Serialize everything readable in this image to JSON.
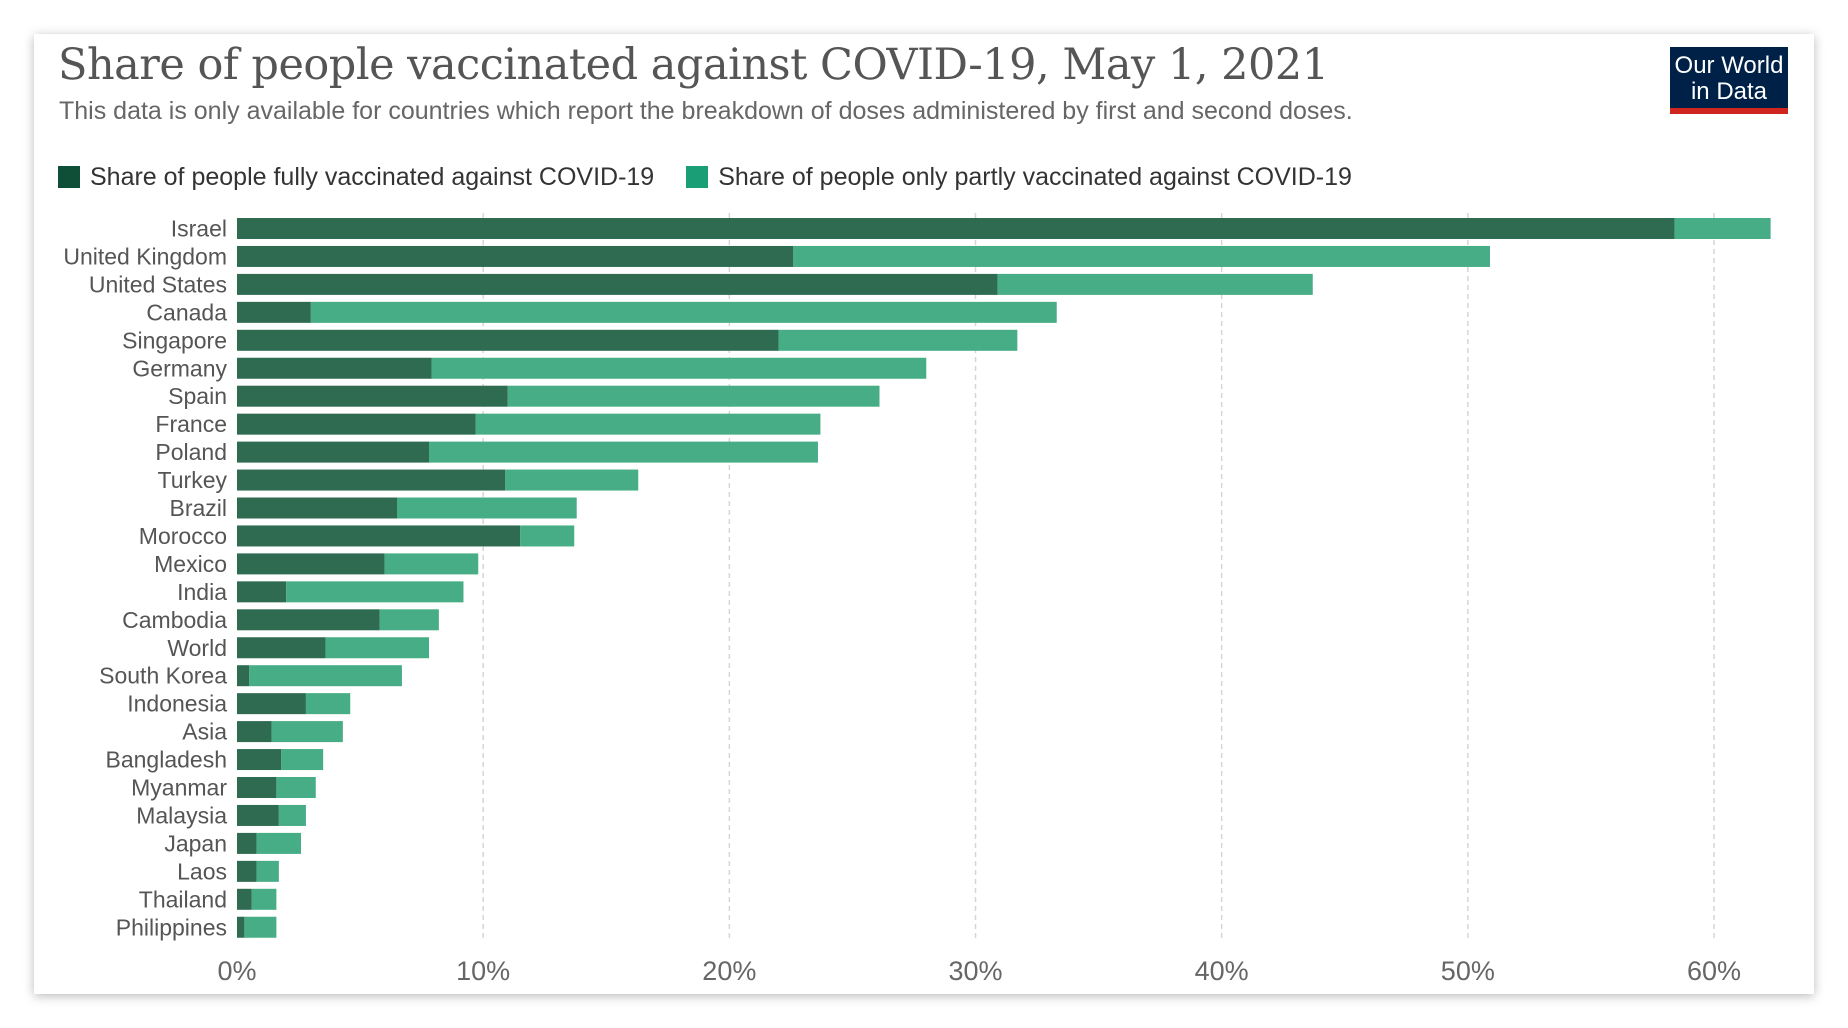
{
  "header": {
    "title": "Share of people vaccinated against COVID-19, May 1, 2021",
    "subtitle": "This data is only available for countries which report the breakdown of doses administered by first and second doses.",
    "logo_line1": "Our World",
    "logo_line2": "in Data"
  },
  "colors": {
    "fully": "#2e6b50",
    "partly": "#46ad86",
    "legend_fully": "#0f4f38",
    "legend_partly": "#1a9e75",
    "grid": "#d6d6d6",
    "logo_bg": "#002147",
    "logo_accent": "#ce261e"
  },
  "chart_data": {
    "type": "bar",
    "orientation": "horizontal",
    "stacked": true,
    "title": "Share of people vaccinated against COVID-19, May 1, 2021",
    "subtitle": "This data is only available for countries which report the breakdown of doses administered by first and second doses.",
    "categories": [
      "Israel",
      "United Kingdom",
      "United States",
      "Canada",
      "Singapore",
      "Germany",
      "Spain",
      "France",
      "Poland",
      "Turkey",
      "Brazil",
      "Morocco",
      "Mexico",
      "India",
      "Cambodia",
      "World",
      "South Korea",
      "Indonesia",
      "Asia",
      "Bangladesh",
      "Myanmar",
      "Malaysia",
      "Japan",
      "Laos",
      "Thailand",
      "Philippines"
    ],
    "series": [
      {
        "name": "Share of people fully vaccinated against COVID-19",
        "values": [
          58.4,
          22.6,
          30.9,
          3.0,
          22.0,
          7.9,
          11.0,
          9.7,
          7.8,
          10.9,
          6.5,
          11.5,
          6.0,
          2.0,
          5.8,
          3.6,
          0.5,
          2.8,
          1.4,
          1.8,
          1.6,
          1.7,
          0.8,
          0.8,
          0.6,
          0.3
        ]
      },
      {
        "name": "Share of people only partly vaccinated against COVID-19",
        "values": [
          3.9,
          28.3,
          12.8,
          30.3,
          9.7,
          20.1,
          15.1,
          14.0,
          15.8,
          5.4,
          7.3,
          2.2,
          3.8,
          7.2,
          2.4,
          4.2,
          6.2,
          1.8,
          2.9,
          1.7,
          1.6,
          1.1,
          1.8,
          0.9,
          1.0,
          1.3
        ]
      }
    ],
    "x_ticks": [
      "0%",
      "10%",
      "20%",
      "30%",
      "40%",
      "50%",
      "60%"
    ],
    "xlim": [
      0,
      63
    ],
    "grid": true,
    "legend_position": "top-left"
  }
}
